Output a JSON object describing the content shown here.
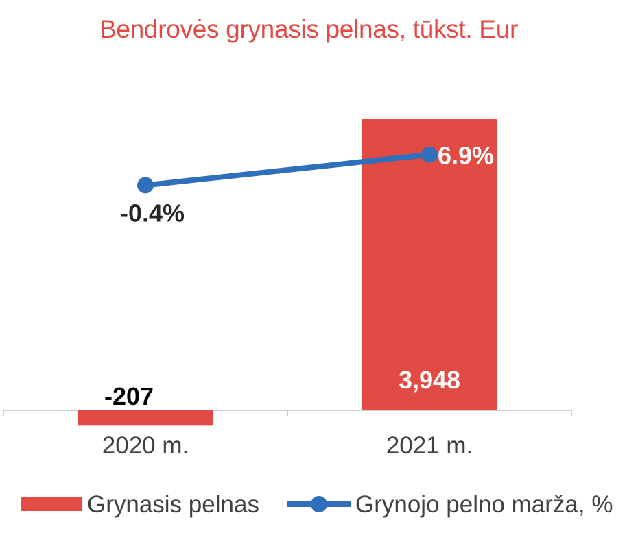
{
  "chart_data": {
    "type": "bar",
    "title": "Bendrovės grynasis pelnas, tūkst. Eur",
    "categories": [
      "2020 m.",
      "2021 m."
    ],
    "series": [
      {
        "name": "Grynasis pelnas",
        "type": "bar",
        "axis": "primary",
        "values": [
          -207,
          3948
        ],
        "labels": [
          "-207",
          "3,948"
        ],
        "color": "#e14b43"
      },
      {
        "name": "Grynojo pelno marža, %",
        "type": "line",
        "axis": "secondary",
        "values": [
          -0.4,
          6.9
        ],
        "labels": [
          "-0.4%",
          "6.9%"
        ],
        "color": "#2f6fbb"
      }
    ],
    "grid": false,
    "legend": "bottom"
  }
}
